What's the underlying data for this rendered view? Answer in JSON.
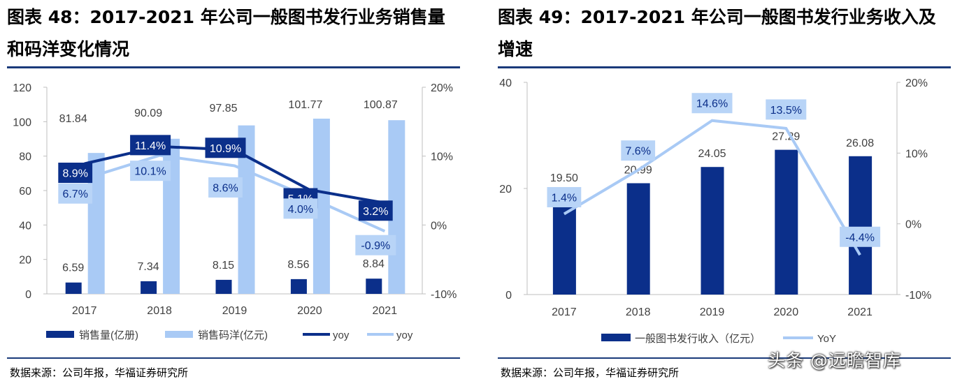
{
  "panels": {
    "left": {
      "title": "图表 48：2017-2021 年公司一般图书发行业务销售量和码洋变化情况",
      "source": "数据来源：公司年报，华福证券研究所"
    },
    "right": {
      "title": "图表 49：2017-2021 年公司一般图书发行业务收入及增速",
      "source": "数据来源：公司年报，华福证券研究所"
    }
  },
  "watermark": "头条 @远瞻智库",
  "colors": {
    "dark": "#0b2f8a",
    "light": "#a9caf5",
    "label_light": "#b8d4f7",
    "axis": "#bfbfbf",
    "text": "#404040"
  },
  "chart_data": [
    {
      "type": "bar",
      "categories": [
        "2017",
        "2018",
        "2019",
        "2020",
        "2021"
      ],
      "series": [
        {
          "name": "销售量(亿册)",
          "type": "bar",
          "axis": "left",
          "color": "#0b2f8a",
          "values": [
            6.59,
            7.34,
            8.15,
            8.56,
            8.84
          ]
        },
        {
          "name": "销售码洋(亿元)",
          "type": "bar",
          "axis": "left",
          "color": "#a9caf5",
          "values": [
            81.84,
            90.09,
            97.85,
            101.77,
            100.87
          ]
        },
        {
          "name": "yoy",
          "type": "line",
          "axis": "right",
          "color": "#0b2f8a",
          "values": [
            8.9,
            11.4,
            10.9,
            5.1,
            3.2
          ],
          "labels": [
            "8.9%",
            "11.4%",
            "10.9%",
            "5.1%",
            "3.2%"
          ]
        },
        {
          "name": "yoy",
          "type": "line",
          "axis": "right",
          "color": "#a9caf5",
          "values": [
            6.7,
            10.1,
            8.6,
            4.0,
            -0.9
          ],
          "labels": [
            "6.7%",
            "10.1%",
            "8.6%",
            "4.0%",
            "-0.9%"
          ]
        }
      ],
      "yleft": {
        "lim": [
          0,
          120
        ],
        "ticks": [
          "0",
          "20",
          "40",
          "60",
          "80",
          "100",
          "120"
        ]
      },
      "yright": {
        "lim": [
          -10,
          20
        ],
        "ticks": [
          "-10%",
          "0%",
          "10%",
          "20%"
        ]
      },
      "value_labels_qty": [
        "6.59",
        "7.34",
        "8.15",
        "8.56",
        "8.84"
      ],
      "value_labels_yang": [
        "81.84",
        "90.09",
        "97.85",
        "101.77",
        "100.87"
      ],
      "legend": [
        "销售量(亿册)",
        "销售码洋(亿元)",
        "yoy",
        "yoy"
      ],
      "legend_position": "bottom"
    },
    {
      "type": "bar",
      "categories": [
        "2017",
        "2018",
        "2019",
        "2020",
        "2021"
      ],
      "series": [
        {
          "name": "一般图书发行收入（亿元）",
          "type": "bar",
          "axis": "left",
          "color": "#0b2f8a",
          "values": [
            19.5,
            20.99,
            24.05,
            27.29,
            26.08
          ]
        },
        {
          "name": "YoY",
          "type": "line",
          "axis": "right",
          "color": "#a9caf5",
          "values": [
            1.4,
            7.6,
            14.6,
            13.5,
            -4.4
          ],
          "labels": [
            "1.4%",
            "7.6%",
            "14.6%",
            "13.5%",
            "-4.4%"
          ]
        }
      ],
      "yleft": {
        "lim": [
          0,
          40
        ],
        "ticks": [
          "0",
          "20",
          "40"
        ]
      },
      "yright": {
        "lim": [
          -10,
          20
        ],
        "ticks": [
          "-10%",
          "0%",
          "10%",
          "20%"
        ]
      },
      "value_labels": [
        "19.50",
        "20.99",
        "24.05",
        "27.29",
        "26.08"
      ],
      "legend": [
        "一般图书发行收入（亿元）",
        "YoY"
      ],
      "legend_position": "bottom"
    }
  ]
}
